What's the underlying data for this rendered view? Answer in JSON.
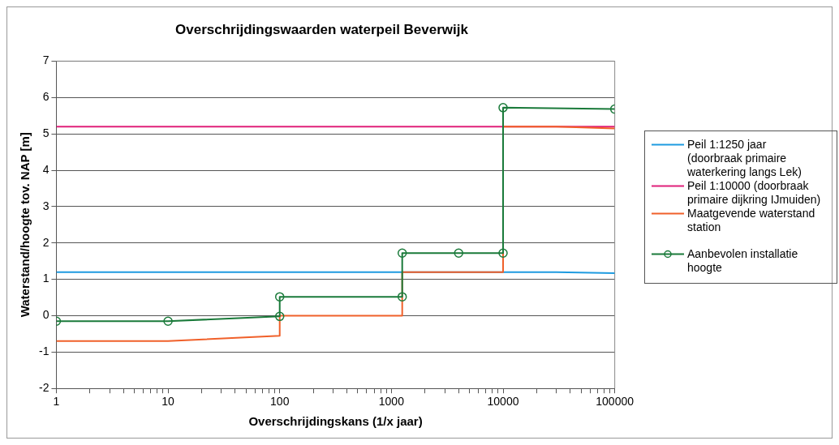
{
  "chart_data": {
    "type": "line",
    "title": "Overschrijdingswaarden waterpeil Beverwijk",
    "xlabel": "Overschrijdingskans (1/x jaar)",
    "ylabel": "Waterstand/hoogte tov. NAP [m]",
    "log": "x",
    "xlim": [
      1,
      100000
    ],
    "ylim": [
      -2,
      7
    ],
    "xticks": [
      1,
      {
        "value": 2,
        "label": null
      },
      {
        "value": 3,
        "label": null
      },
      {
        "value": 4,
        "label": null
      },
      {
        "value": 5,
        "label": null
      },
      {
        "value": 6,
        "label": null
      },
      {
        "value": 7,
        "label": null
      },
      {
        "value": 8,
        "label": null
      },
      {
        "value": 9,
        "label": null
      },
      10,
      {
        "value": 20,
        "label": null
      },
      {
        "value": 30,
        "label": null
      },
      {
        "value": 40,
        "label": null
      },
      {
        "value": 50,
        "label": null
      },
      {
        "value": 60,
        "label": null
      },
      {
        "value": 70,
        "label": null
      },
      {
        "value": 80,
        "label": null
      },
      {
        "value": 90,
        "label": null
      },
      100,
      {
        "value": 200,
        "label": null
      },
      {
        "value": 300,
        "label": null
      },
      {
        "value": 400,
        "label": null
      },
      {
        "value": 500,
        "label": null
      },
      {
        "value": 600,
        "label": null
      },
      {
        "value": 700,
        "label": null
      },
      {
        "value": 800,
        "label": null
      },
      {
        "value": 900,
        "label": null
      },
      1000,
      {
        "value": 2000,
        "label": null
      },
      {
        "value": 3000,
        "label": null
      },
      {
        "value": 4000,
        "label": null
      },
      {
        "value": 5000,
        "label": null
      },
      {
        "value": 6000,
        "label": null
      },
      {
        "value": 7000,
        "label": null
      },
      {
        "value": 8000,
        "label": null
      },
      {
        "value": 9000,
        "label": null
      },
      10000,
      {
        "value": 20000,
        "label": null
      },
      {
        "value": 30000,
        "label": null
      },
      {
        "value": 40000,
        "label": null
      },
      {
        "value": 50000,
        "label": null
      },
      {
        "value": 60000,
        "label": null
      },
      {
        "value": 70000,
        "label": null
      },
      {
        "value": 80000,
        "label": null
      },
      {
        "value": 90000,
        "label": null
      },
      100000
    ],
    "yticks": [
      -2,
      -1,
      0,
      1,
      2,
      3,
      4,
      5,
      6,
      7
    ],
    "grid": "y",
    "legend": "right",
    "series": [
      {
        "name": "Peil 1:1250 jaar (doorbraak primaire waterkering langs Lek)",
        "color": "#1e9be0",
        "x": [
          1,
          30000,
          100000
        ],
        "values": [
          1.2,
          1.2,
          1.17
        ],
        "marker": "none"
      },
      {
        "name": "Peil 1:10000 (doorbraak primaire dijkring IJmuiden)",
        "color": "#e0207a",
        "x": [
          1,
          100000
        ],
        "values": [
          5.2,
          5.2
        ],
        "marker": "none"
      },
      {
        "name": "Maatgevende waterstand station",
        "color": "#f0602a",
        "x": [
          1,
          10,
          100,
          100,
          1250,
          1250,
          10000,
          10000,
          30000,
          100000
        ],
        "values": [
          -0.7,
          -0.7,
          -0.55,
          0,
          0,
          1.2,
          1.2,
          5.2,
          5.2,
          5.15
        ],
        "marker": "none"
      },
      {
        "name": "Aanbevolen installatie hoogte",
        "color": "#1a7a3a",
        "x": [
          1,
          10,
          100,
          100,
          1250,
          1250,
          4000,
          10000,
          10000,
          100000
        ],
        "values": [
          -0.15,
          -0.15,
          -0.02,
          0.52,
          0.52,
          1.72,
          1.72,
          1.72,
          5.72,
          5.68
        ],
        "marker": "circle"
      }
    ]
  }
}
